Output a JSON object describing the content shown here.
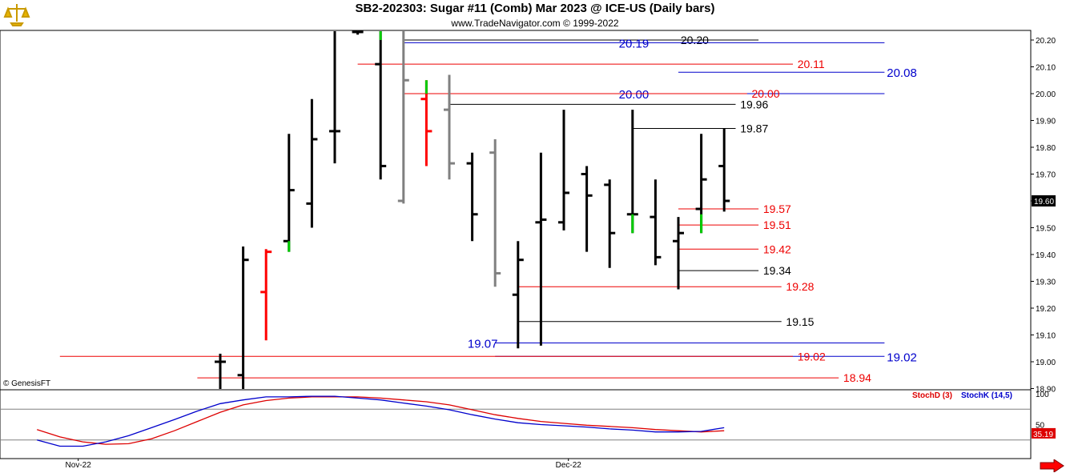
{
  "header": {
    "title": "SB2-202303:  Sugar #11 (Comb) Mar 2023 @ ICE-US  (Daily bars)",
    "subtitle": "www.TradeNavigator.com © 1999-2022",
    "copyright": "© GenesisFT"
  },
  "colors": {
    "up_bar": "#000000",
    "down_red_bar": "#ff0000",
    "gray_bar": "#808080",
    "green_tick": "#00cc00",
    "level_black": "#000000",
    "level_red": "#ee0000",
    "level_blue": "#0000cc",
    "stochD": "#dd0000",
    "stochK": "#0000cc",
    "current_price_bg": "#000000"
  },
  "chart_data": [
    {
      "type": "ohlc",
      "y_ticks": [
        "20.20",
        "20.10",
        "20.00",
        "19.90",
        "19.80",
        "19.70",
        "19.60",
        "19.50",
        "19.40",
        "19.30",
        "19.20",
        "19.10",
        "19.00",
        "18.90"
      ],
      "ylim": [
        18.89,
        20.24
      ],
      "x_labels": [
        "Nov-22",
        "Dec-22"
      ],
      "current_price": "19.60",
      "bars": [
        {
          "x": 1,
          "high": 19.03,
          "low": 18.89,
          "open": 19.0,
          "close": 19.0,
          "color": "black"
        },
        {
          "x": 2,
          "high": 19.43,
          "low": 18.89,
          "open": 18.95,
          "close": 19.38,
          "color": "black"
        },
        {
          "x": 3,
          "high": 19.42,
          "low": 19.08,
          "open": 19.26,
          "close": 19.41,
          "color": "red"
        },
        {
          "x": 4,
          "high": 19.85,
          "low": 19.41,
          "open": 19.45,
          "close": 19.64,
          "color": "black",
          "tick": {
            "from": 19.45,
            "to": 19.41,
            "color": "green"
          }
        },
        {
          "x": 5,
          "high": 19.98,
          "low": 19.5,
          "open": 19.59,
          "close": 19.83,
          "color": "black"
        },
        {
          "x": 6,
          "high": 20.24,
          "low": 19.74,
          "open": 19.86,
          "close": 19.86,
          "color": "black"
        },
        {
          "x": 7,
          "high": 20.24,
          "low": 20.22,
          "open": 20.23,
          "close": 20.23,
          "color": "black"
        },
        {
          "x": 8,
          "high": 20.24,
          "low": 19.68,
          "open": 20.11,
          "close": 19.73,
          "color": "black",
          "tick": {
            "from": 20.24,
            "to": 20.2,
            "color": "green"
          }
        },
        {
          "x": 9,
          "high": 20.24,
          "low": 19.59,
          "open": 19.6,
          "close": 20.05,
          "color": "gray"
        },
        {
          "x": 10,
          "high": 20.05,
          "low": 19.73,
          "open": 19.98,
          "close": 19.86,
          "color": "red",
          "tick": {
            "from": 20.05,
            "to": 20.0,
            "color": "green"
          }
        },
        {
          "x": 11,
          "high": 20.07,
          "low": 19.68,
          "open": 19.94,
          "close": 19.74,
          "color": "gray"
        },
        {
          "x": 12,
          "high": 19.78,
          "low": 19.45,
          "open": 19.74,
          "close": 19.55,
          "color": "black"
        },
        {
          "x": 13,
          "high": 19.83,
          "low": 19.28,
          "open": 19.78,
          "close": 19.33,
          "color": "gray"
        },
        {
          "x": 14,
          "high": 19.45,
          "low": 19.05,
          "open": 19.25,
          "close": 19.38,
          "color": "black"
        },
        {
          "x": 15,
          "high": 19.78,
          "low": 19.06,
          "open": 19.52,
          "close": 19.53,
          "color": "black"
        },
        {
          "x": 16,
          "high": 19.94,
          "low": 19.49,
          "open": 19.52,
          "close": 19.63,
          "color": "black"
        },
        {
          "x": 17,
          "high": 19.73,
          "low": 19.41,
          "open": 19.7,
          "close": 19.62,
          "color": "black"
        },
        {
          "x": 18,
          "high": 19.68,
          "low": 19.35,
          "open": 19.66,
          "close": 19.48,
          "color": "black"
        },
        {
          "x": 19,
          "high": 19.94,
          "low": 19.48,
          "open": 19.55,
          "close": 19.55,
          "color": "black",
          "tick": {
            "from": 19.55,
            "to": 19.48,
            "color": "green"
          }
        },
        {
          "x": 20,
          "high": 19.68,
          "low": 19.36,
          "open": 19.54,
          "close": 19.39,
          "color": "black"
        },
        {
          "x": 21,
          "high": 19.54,
          "low": 19.27,
          "open": 19.45,
          "close": 19.48,
          "color": "black"
        },
        {
          "x": 22,
          "high": 19.85,
          "low": 19.48,
          "open": 19.57,
          "close": 19.68,
          "color": "black",
          "tick": {
            "from": 19.55,
            "to": 19.48,
            "color": "green"
          }
        },
        {
          "x": 23,
          "high": 19.87,
          "low": 19.56,
          "open": 19.73,
          "close": 19.6,
          "color": "black"
        }
      ],
      "levels": [
        {
          "value": 20.2,
          "label": "20.20",
          "color": "black",
          "x_from": 9.0,
          "x_to": 24.5,
          "label_x": 21.1
        },
        {
          "value": 20.19,
          "label": "20.19",
          "color": "blue",
          "x_from": 9.0,
          "x_to": 30.0,
          "label_x": 18.4
        },
        {
          "value": 20.11,
          "label": "20.11",
          "color": "red",
          "x_from": 7.0,
          "x_to": 26.0,
          "label_x": 26.2
        },
        {
          "value": 20.08,
          "label": "20.08",
          "color": "blue",
          "x_from": 21.0,
          "x_to": 30.0,
          "label_x": 30.1
        },
        {
          "value": 20.0,
          "label": "20.00",
          "color": "blue",
          "x_from": 9.0,
          "x_to": 30.0,
          "label_x": 18.4
        },
        {
          "value": 20.0,
          "label": "20.00",
          "color": "red",
          "x_from": 9.0,
          "x_to": 24.0,
          "label_x": 24.2
        },
        {
          "value": 19.96,
          "label": "19.96",
          "color": "black",
          "x_from": 11.0,
          "x_to": 23.5,
          "label_x": 23.7
        },
        {
          "value": 19.87,
          "label": "19.87",
          "color": "black",
          "x_from": 19.0,
          "x_to": 23.5,
          "label_x": 23.7
        },
        {
          "value": 19.57,
          "label": "19.57",
          "color": "red",
          "x_from": 21.0,
          "x_to": 24.5,
          "label_x": 24.7
        },
        {
          "value": 19.51,
          "label": "19.51",
          "color": "red",
          "x_from": 21.0,
          "x_to": 24.5,
          "label_x": 24.7
        },
        {
          "value": 19.42,
          "label": "19.42",
          "color": "red",
          "x_from": 21.0,
          "x_to": 24.5,
          "label_x": 24.7
        },
        {
          "value": 19.34,
          "label": "19.34",
          "color": "black",
          "x_from": 21.0,
          "x_to": 24.5,
          "label_x": 24.7
        },
        {
          "value": 19.28,
          "label": "19.28",
          "color": "red",
          "x_from": 14.0,
          "x_to": 25.5,
          "label_x": 25.7
        },
        {
          "value": 19.15,
          "label": "19.15",
          "color": "black",
          "x_from": 14.0,
          "x_to": 25.5,
          "label_x": 25.7
        },
        {
          "value": 19.07,
          "label": "19.07",
          "color": "blue",
          "x_from": 13.0,
          "x_to": 30.0,
          "label_x": 11.8
        },
        {
          "value": 19.02,
          "label": "19.02",
          "color": "blue",
          "x_from": 13.0,
          "x_to": 30.0,
          "label_x": 30.1
        },
        {
          "value": 19.02,
          "label": "19.02",
          "color": "red",
          "x_from": -6.0,
          "x_to": 26.0,
          "label_x": 26.2
        },
        {
          "value": 18.94,
          "label": "18.94",
          "color": "red",
          "x_from": 0.0,
          "x_to": 28.0,
          "label_x": 28.2
        }
      ]
    },
    {
      "type": "line",
      "title": "",
      "legend": [
        "StochD (3)",
        "StochK (14,5)"
      ],
      "y_ticks": [
        "100",
        "50"
      ],
      "ylim": [
        0,
        100
      ],
      "current_value": "35.19",
      "series": [
        {
          "name": "StochD (3)",
          "color": "red",
          "x": [
            -7,
            -6,
            -5,
            -4,
            -3,
            -2,
            -1,
            0,
            1,
            2,
            3,
            4,
            5,
            6,
            7,
            8,
            9,
            10,
            11,
            12,
            13,
            14,
            15,
            16,
            17,
            18,
            19,
            20,
            21,
            22,
            23
          ],
          "values": [
            42,
            30,
            22,
            18,
            19,
            27,
            40,
            55,
            70,
            82,
            89,
            93,
            95,
            95,
            95,
            93,
            90,
            87,
            82,
            74,
            66,
            60,
            55,
            52,
            49,
            47,
            45,
            42,
            40,
            38,
            40
          ]
        },
        {
          "name": "StochK (14,5)",
          "color": "blue",
          "x": [
            -7,
            -6,
            -5,
            -4,
            -3,
            -2,
            -1,
            0,
            1,
            2,
            3,
            4,
            5,
            6,
            7,
            8,
            9,
            10,
            11,
            12,
            13,
            14,
            15,
            16,
            17,
            18,
            19,
            20,
            21,
            22,
            23
          ],
          "values": [
            25,
            15,
            15,
            22,
            32,
            45,
            58,
            72,
            84,
            90,
            95,
            95,
            96,
            96,
            93,
            90,
            85,
            80,
            74,
            66,
            59,
            53,
            50,
            48,
            46,
            43,
            41,
            38,
            38,
            39,
            45
          ]
        }
      ],
      "hlines": [
        {
          "value": 75,
          "color": "gray"
        },
        {
          "value": 25,
          "color": "gray"
        }
      ]
    }
  ]
}
